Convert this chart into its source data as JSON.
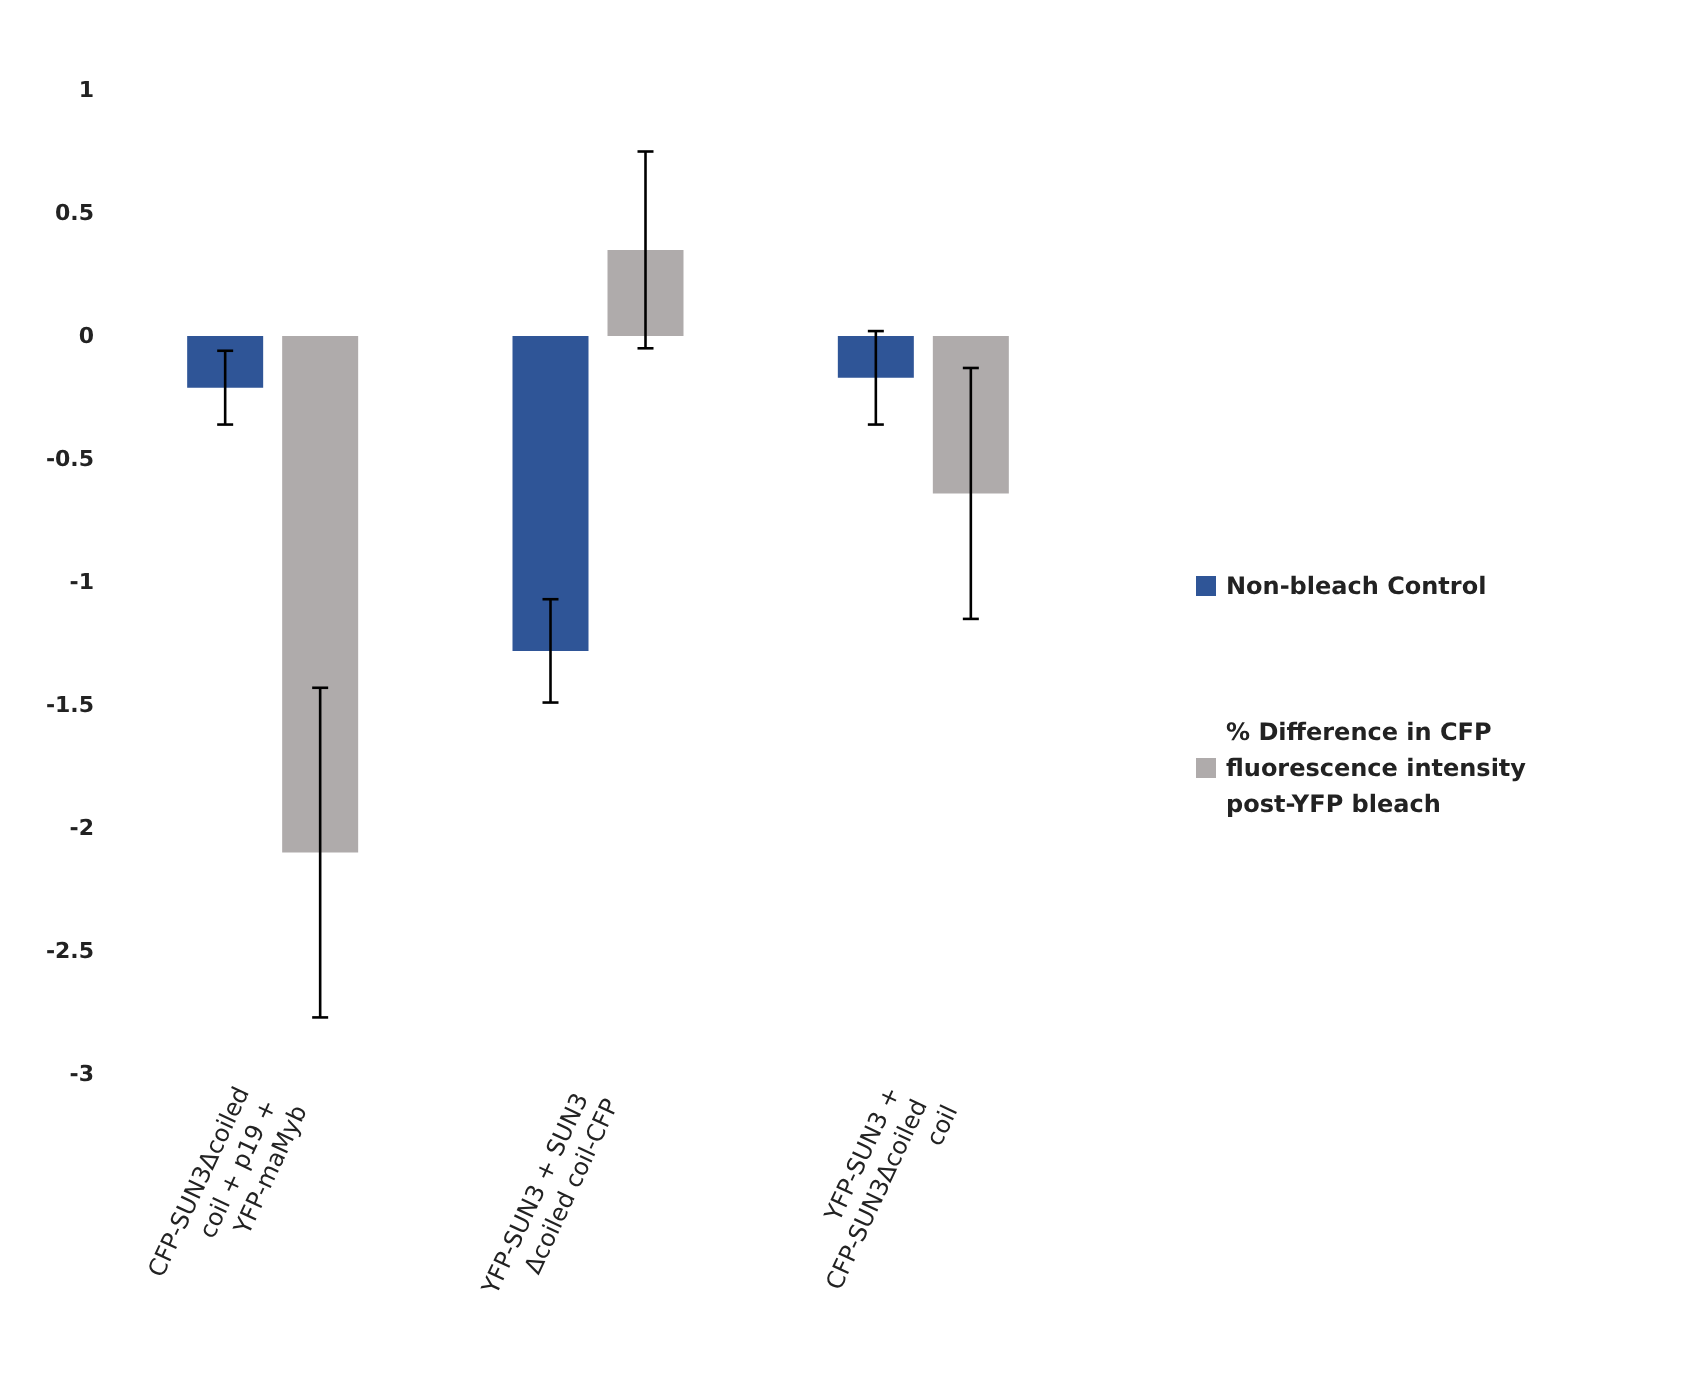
{
  "chart_data": {
    "type": "bar",
    "categories": [
      "CFP-SUN3Δcoiled coil + p19 + YFP-maMyb",
      "YFP-SUN3 + SUN3 Δcoiled coil-CFP",
      "YFP-SUN3 + CFP-SUN3Δcoiled coil"
    ],
    "series": [
      {
        "name": "Non-bleach Control",
        "color": "#2f5597",
        "values": [
          -0.21,
          -1.28,
          -0.17
        ],
        "errors": [
          0.15,
          0.21,
          0.19
        ]
      },
      {
        "name": "% Difference in CFP fluorescence intensity post-YFP bleach",
        "color": "#afabab",
        "values": [
          -2.1,
          0.35,
          -0.64
        ],
        "errors": [
          0.67,
          0.4,
          0.51
        ]
      }
    ],
    "ylim": [
      -3,
      1
    ],
    "yticks": [
      -3,
      -2.5,
      -2,
      -1.5,
      -1,
      -0.5,
      0,
      0.5,
      1
    ],
    "grid": false,
    "legend": "right"
  }
}
